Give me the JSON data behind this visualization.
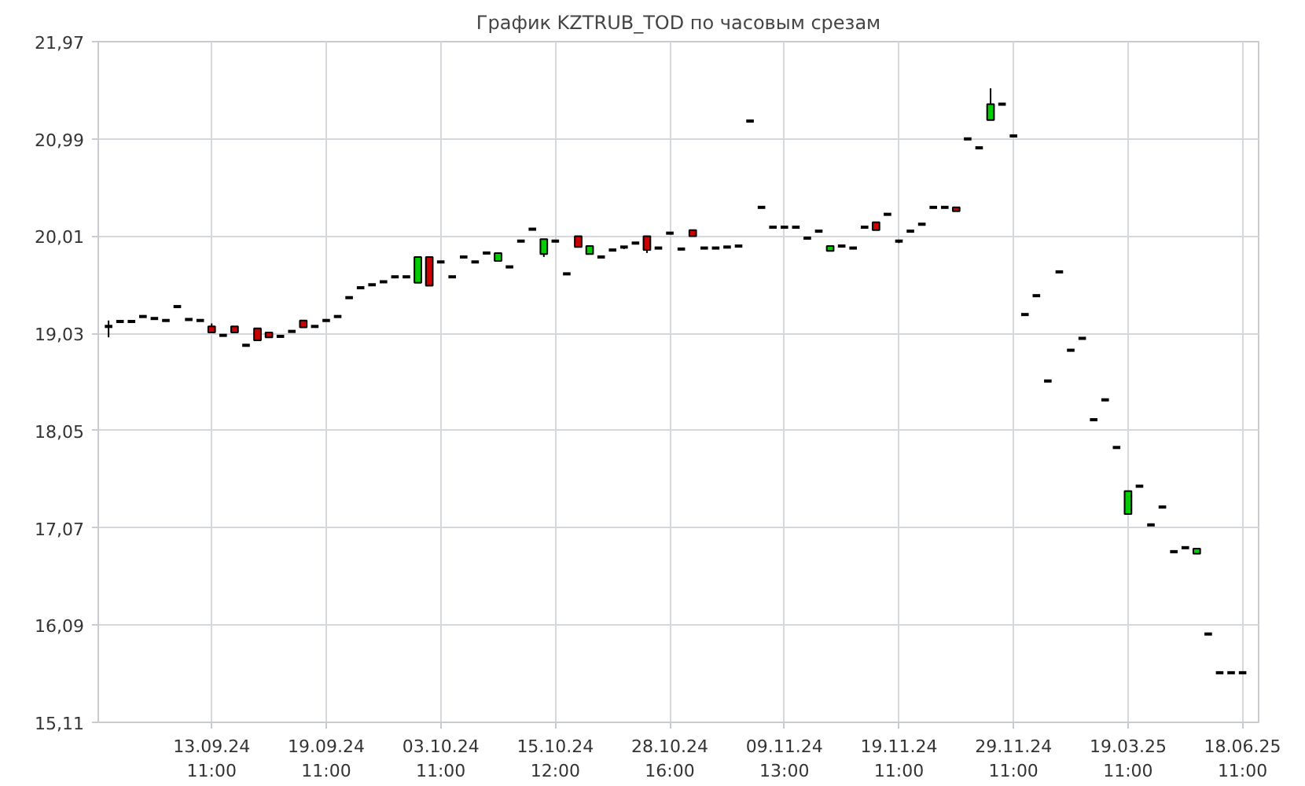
{
  "chart_data": {
    "type": "candlestick",
    "title": "График KZTRUB_TOD по часовым срезам",
    "categories": [
      null,
      null,
      null,
      null,
      null,
      null,
      null,
      null,
      null,
      "13.09.24\n11:00",
      null,
      null,
      null,
      null,
      null,
      null,
      null,
      null,
      null,
      "19.09.24\n11:00",
      null,
      null,
      null,
      null,
      null,
      null,
      null,
      null,
      null,
      "03.10.24\n11:00",
      null,
      null,
      null,
      null,
      null,
      null,
      null,
      null,
      null,
      "15.10.24\n12:00",
      null,
      null,
      null,
      null,
      null,
      null,
      null,
      null,
      null,
      "28.10.24\n16:00",
      null,
      null,
      null,
      null,
      null,
      null,
      null,
      null,
      null,
      "09.11.24\n13:00",
      null,
      null,
      null,
      null,
      null,
      null,
      null,
      null,
      null,
      "19.11.24\n11:00",
      null,
      null,
      null,
      null,
      null,
      null,
      null,
      null,
      null,
      "29.11.24\n11:00",
      null,
      null,
      null,
      null,
      null,
      null,
      null,
      null,
      null,
      "19.03.25\n11:00",
      null,
      null,
      null,
      null,
      null,
      null,
      null,
      null,
      null,
      "18.06.25\n11:00"
    ],
    "ohlc": [
      [
        19.1,
        19.16,
        18.99,
        19.1
      ],
      [
        19.15,
        19.15,
        19.15,
        19.15
      ],
      [
        19.15,
        19.15,
        19.15,
        19.15
      ],
      [
        19.2,
        19.2,
        19.2,
        19.2
      ],
      [
        19.18,
        19.18,
        19.18,
        19.18
      ],
      [
        19.16,
        19.16,
        19.16,
        19.16
      ],
      [
        19.3,
        19.3,
        19.3,
        19.3
      ],
      [
        19.17,
        19.17,
        19.17,
        19.17
      ],
      [
        19.16,
        19.16,
        19.16,
        19.16
      ],
      [
        19.1,
        19.13,
        19.04,
        19.04
      ],
      [
        19.01,
        19.01,
        19.01,
        19.01
      ],
      [
        19.1,
        19.1,
        19.04,
        19.04
      ],
      [
        18.91,
        18.91,
        18.91,
        18.91
      ],
      [
        19.08,
        19.08,
        18.96,
        18.96
      ],
      [
        19.04,
        19.04,
        18.99,
        18.99
      ],
      [
        19.0,
        19.0,
        19.0,
        19.0
      ],
      [
        19.05,
        19.05,
        19.05,
        19.05
      ],
      [
        19.16,
        19.16,
        19.09,
        19.09
      ],
      [
        19.1,
        19.1,
        19.1,
        19.1
      ],
      [
        19.16,
        19.16,
        19.16,
        19.16
      ],
      [
        19.2,
        19.2,
        19.2,
        19.2
      ],
      [
        19.39,
        19.39,
        19.39,
        19.39
      ],
      [
        19.49,
        19.49,
        19.49,
        19.49
      ],
      [
        19.52,
        19.52,
        19.52,
        19.52
      ],
      [
        19.55,
        19.55,
        19.55,
        19.55
      ],
      [
        19.6,
        19.6,
        19.6,
        19.6
      ],
      [
        19.6,
        19.6,
        19.6,
        19.6
      ],
      [
        19.54,
        19.8,
        19.54,
        19.8
      ],
      [
        19.8,
        19.8,
        19.51,
        19.51
      ],
      [
        19.75,
        19.75,
        19.75,
        19.75
      ],
      [
        19.6,
        19.6,
        19.6,
        19.6
      ],
      [
        19.8,
        19.8,
        19.8,
        19.8
      ],
      [
        19.75,
        19.75,
        19.75,
        19.75
      ],
      [
        19.84,
        19.84,
        19.84,
        19.84
      ],
      [
        19.76,
        19.84,
        19.76,
        19.84
      ],
      [
        19.7,
        19.7,
        19.7,
        19.7
      ],
      [
        19.96,
        19.96,
        19.96,
        19.96
      ],
      [
        20.08,
        20.08,
        20.08,
        20.08
      ],
      [
        19.83,
        19.98,
        19.8,
        19.98
      ],
      [
        19.96,
        19.96,
        19.96,
        19.96
      ],
      [
        19.63,
        19.63,
        19.63,
        19.63
      ],
      [
        20.01,
        20.01,
        19.9,
        19.9
      ],
      [
        19.83,
        19.91,
        19.83,
        19.91
      ],
      [
        19.8,
        19.8,
        19.8,
        19.8
      ],
      [
        19.87,
        19.87,
        19.87,
        19.87
      ],
      [
        19.9,
        19.91,
        19.88,
        19.9
      ],
      [
        19.94,
        19.94,
        19.94,
        19.94
      ],
      [
        20.01,
        20.01,
        19.84,
        19.87
      ],
      [
        19.89,
        19.89,
        19.89,
        19.89
      ],
      [
        20.04,
        20.04,
        20.04,
        20.04
      ],
      [
        19.88,
        19.88,
        19.88,
        19.88
      ],
      [
        20.07,
        20.07,
        20.01,
        20.01
      ],
      [
        19.89,
        19.89,
        19.89,
        19.89
      ],
      [
        19.89,
        19.89,
        19.89,
        19.89
      ],
      [
        19.9,
        19.9,
        19.9,
        19.9
      ],
      [
        19.91,
        19.91,
        19.91,
        19.91
      ],
      [
        21.17,
        21.17,
        21.17,
        21.17
      ],
      [
        20.3,
        20.3,
        20.3,
        20.3
      ],
      [
        20.1,
        20.1,
        20.1,
        20.1
      ],
      [
        20.1,
        20.1,
        20.1,
        20.1
      ],
      [
        20.1,
        20.1,
        20.1,
        20.1
      ],
      [
        19.99,
        19.99,
        19.99,
        19.99
      ],
      [
        20.06,
        20.06,
        20.06,
        20.06
      ],
      [
        19.86,
        19.91,
        19.86,
        19.91
      ],
      [
        19.91,
        19.91,
        19.91,
        19.91
      ],
      [
        19.89,
        19.89,
        19.89,
        19.89
      ],
      [
        20.1,
        20.1,
        20.1,
        20.1
      ],
      [
        20.15,
        20.15,
        20.07,
        20.07
      ],
      [
        20.23,
        20.23,
        20.23,
        20.23
      ],
      [
        19.96,
        19.97,
        19.94,
        19.96
      ],
      [
        20.06,
        20.06,
        20.06,
        20.06
      ],
      [
        20.13,
        20.13,
        20.13,
        20.13
      ],
      [
        20.3,
        20.3,
        20.3,
        20.3
      ],
      [
        20.3,
        20.3,
        20.3,
        20.3
      ],
      [
        20.3,
        20.3,
        20.26,
        20.26
      ],
      [
        20.99,
        20.99,
        20.99,
        20.99
      ],
      [
        20.9,
        20.9,
        20.9,
        20.9
      ],
      [
        21.18,
        21.5,
        21.18,
        21.34
      ],
      [
        21.34,
        21.34,
        21.34,
        21.34
      ],
      [
        21.02,
        21.02,
        21.02,
        21.02
      ],
      [
        19.22,
        19.22,
        19.22,
        19.22
      ],
      [
        19.41,
        19.41,
        19.41,
        19.41
      ],
      [
        18.55,
        18.55,
        18.55,
        18.55
      ],
      [
        19.65,
        19.65,
        19.65,
        19.65
      ],
      [
        18.86,
        18.86,
        18.86,
        18.86
      ],
      [
        18.98,
        18.98,
        18.98,
        18.98
      ],
      [
        18.16,
        18.16,
        18.16,
        18.16
      ],
      [
        18.36,
        18.36,
        18.36,
        18.36
      ],
      [
        17.88,
        17.88,
        17.88,
        17.88
      ],
      [
        17.21,
        17.44,
        17.21,
        17.44
      ],
      [
        17.49,
        17.49,
        17.49,
        17.49
      ],
      [
        17.1,
        17.1,
        17.1,
        17.1
      ],
      [
        17.28,
        17.28,
        17.28,
        17.28
      ],
      [
        16.83,
        16.83,
        16.83,
        16.83
      ],
      [
        16.87,
        16.87,
        16.87,
        16.87
      ],
      [
        16.81,
        16.86,
        16.81,
        16.86
      ],
      [
        16.0,
        16.0,
        16.0,
        16.0
      ],
      [
        15.61,
        15.61,
        15.61,
        15.61
      ],
      [
        15.61,
        15.61,
        15.61,
        15.61
      ],
      [
        15.61,
        15.61,
        15.61,
        15.61
      ]
    ],
    "colors": [
      "#000000",
      "#000000",
      "#000000",
      "#000000",
      "#000000",
      "#000000",
      "#000000",
      "#000000",
      "#000000",
      "#cc0000",
      "#000000",
      "#cc0000",
      "#000000",
      "#cc0000",
      "#cc0000",
      "#000000",
      "#000000",
      "#cc0000",
      "#000000",
      "#000000",
      "#000000",
      "#000000",
      "#000000",
      "#000000",
      "#000000",
      "#000000",
      "#000000",
      "#00cc00",
      "#cc0000",
      "#000000",
      "#000000",
      "#000000",
      "#000000",
      "#000000",
      "#00cc00",
      "#000000",
      "#000000",
      "#000000",
      "#00cc00",
      "#000000",
      "#000000",
      "#cc0000",
      "#00cc00",
      "#000000",
      "#000000",
      "#000000",
      "#000000",
      "#cc0000",
      "#000000",
      "#000000",
      "#000000",
      "#cc0000",
      "#000000",
      "#000000",
      "#000000",
      "#000000",
      "#000000",
      "#000000",
      "#000000",
      "#000000",
      "#000000",
      "#000000",
      "#000000",
      "#00cc00",
      "#000000",
      "#000000",
      "#000000",
      "#cc0000",
      "#000000",
      "#000000",
      "#000000",
      "#000000",
      "#000000",
      "#000000",
      "#cc0000",
      "#000000",
      "#000000",
      "#00cc00",
      "#000000",
      "#000000",
      "#000000",
      "#000000",
      "#000000",
      "#000000",
      "#000000",
      "#000000",
      "#000000",
      "#000000",
      "#000000",
      "#00cc00",
      "#000000",
      "#000000",
      "#000000",
      "#000000",
      "#000000",
      "#00cc00",
      "#000000",
      "#000000",
      "#000000",
      "#000000"
    ],
    "ylim": [
      15.11,
      21.97
    ],
    "yticks": [
      {
        "value": 15.11,
        "label": "15,11"
      },
      {
        "value": 16.09,
        "label": "16,09"
      },
      {
        "value": 17.07,
        "label": "17,07"
      },
      {
        "value": 18.05,
        "label": "18,05"
      },
      {
        "value": 19.03,
        "label": "19,03"
      },
      {
        "value": 20.01,
        "label": "20,01"
      },
      {
        "value": 20.99,
        "label": "20,99"
      },
      {
        "value": 21.97,
        "label": "21,97"
      }
    ],
    "grid": true
  }
}
